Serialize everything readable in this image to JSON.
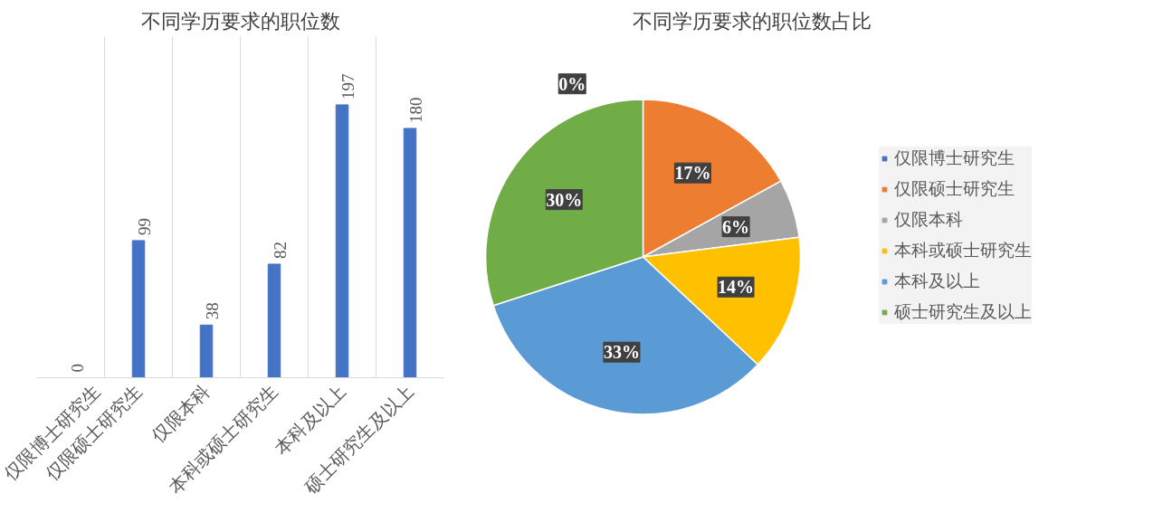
{
  "chart_data": [
    {
      "type": "bar",
      "title": "不同学历要求的职位数",
      "categories": [
        "仅限博士研究生",
        "仅限硕士研究生",
        "仅限本科",
        "本科或硕士研究生",
        "本科及以上",
        "硕士研究生及以上"
      ],
      "values": [
        0,
        99,
        38,
        82,
        197,
        180
      ],
      "color": "#4472c4",
      "data_labels": true,
      "grid": "x",
      "tick_labels": "x"
    },
    {
      "type": "pie",
      "title": "不同学历要求的职位数占比",
      "categories": [
        "仅限博士研究生",
        "仅限硕士研究生",
        "仅限本科",
        "本科或硕士研究生",
        "本科及以上",
        "硕士研究生及以上"
      ],
      "values": [
        0,
        17,
        6,
        14,
        33,
        30
      ],
      "value_labels": [
        "0%",
        "17%",
        "6%",
        "14%",
        "33%",
        "30%"
      ],
      "colors": [
        "#4472c4",
        "#ed7d31",
        "#a5a5a5",
        "#ffc000",
        "#5b9bd5",
        "#70ad47"
      ],
      "data_labels": true,
      "legend": "right"
    }
  ]
}
